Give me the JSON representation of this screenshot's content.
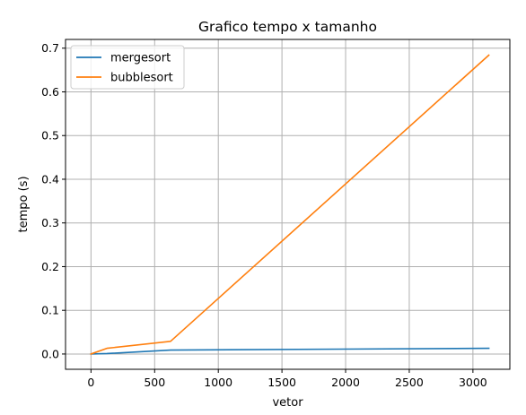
{
  "chart_data": {
    "type": "line",
    "title": "Grafico tempo x tamanho",
    "xlabel": "vetor",
    "ylabel": "tempo (s)",
    "xlim": [
      -200,
      3290
    ],
    "ylim": [
      -0.035,
      0.72
    ],
    "xticks": [
      0,
      500,
      1000,
      1500,
      2000,
      2500,
      3000
    ],
    "yticks": [
      0.0,
      0.1,
      0.2,
      0.3,
      0.4,
      0.5,
      0.6,
      0.7
    ],
    "xtick_labels": [
      "0",
      "500",
      "1000",
      "1500",
      "2000",
      "2500",
      "3000"
    ],
    "ytick_labels": [
      "0.0",
      "0.1",
      "0.2",
      "0.3",
      "0.4",
      "0.5",
      "0.6",
      "0.7"
    ],
    "grid": true,
    "legend_position": "top-left",
    "series": [
      {
        "name": "mergesort",
        "color": "#1f77b4",
        "x": [
          0,
          125,
          625,
          3125
        ],
        "y": [
          0.0,
          0.001,
          0.009,
          0.013
        ]
      },
      {
        "name": "bubblesort",
        "color": "#ff7f0e",
        "x": [
          0,
          125,
          625,
          3125
        ],
        "y": [
          0.0,
          0.013,
          0.029,
          0.684
        ]
      }
    ]
  }
}
